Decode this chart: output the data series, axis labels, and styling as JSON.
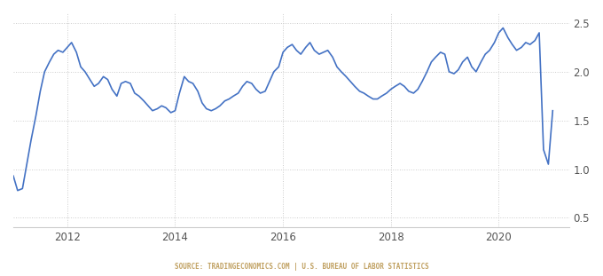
{
  "title": "",
  "source_text": "SOURCE: TRADINGECONOMICS.COM | U.S. BUREAU OF LABOR STATISTICS",
  "line_color": "#4472c4",
  "bg_color": "#ffffff",
  "grid_color": "#cccccc",
  "xlim_start": 2011.0,
  "xlim_end": 2021.3,
  "ylim_bottom": 0.4,
  "ylim_top": 2.6,
  "yticks": [
    0.5,
    1.0,
    1.5,
    2.0,
    2.5
  ],
  "xtick_labels": [
    "2012",
    "2014",
    "2016",
    "2018",
    "2020"
  ],
  "xtick_positions": [
    2012,
    2014,
    2016,
    2018,
    2020
  ],
  "source_color": "#c0a060",
  "xy_data": [
    [
      2011.0,
      0.93
    ],
    [
      2011.08,
      0.78
    ],
    [
      2011.17,
      0.8
    ],
    [
      2011.25,
      1.05
    ],
    [
      2011.33,
      1.3
    ],
    [
      2011.42,
      1.55
    ],
    [
      2011.5,
      1.8
    ],
    [
      2011.58,
      2.0
    ],
    [
      2011.67,
      2.1
    ],
    [
      2011.75,
      2.18
    ],
    [
      2011.83,
      2.22
    ],
    [
      2011.92,
      2.2
    ],
    [
      2012.0,
      2.25
    ],
    [
      2012.08,
      2.3
    ],
    [
      2012.17,
      2.2
    ],
    [
      2012.25,
      2.05
    ],
    [
      2012.33,
      2.0
    ],
    [
      2012.42,
      1.92
    ],
    [
      2012.5,
      1.85
    ],
    [
      2012.58,
      1.88
    ],
    [
      2012.67,
      1.95
    ],
    [
      2012.75,
      1.92
    ],
    [
      2012.83,
      1.82
    ],
    [
      2012.92,
      1.75
    ],
    [
      2013.0,
      1.88
    ],
    [
      2013.08,
      1.9
    ],
    [
      2013.17,
      1.88
    ],
    [
      2013.25,
      1.78
    ],
    [
      2013.33,
      1.75
    ],
    [
      2013.42,
      1.7
    ],
    [
      2013.5,
      1.65
    ],
    [
      2013.58,
      1.6
    ],
    [
      2013.67,
      1.62
    ],
    [
      2013.75,
      1.65
    ],
    [
      2013.83,
      1.63
    ],
    [
      2013.92,
      1.58
    ],
    [
      2014.0,
      1.6
    ],
    [
      2014.08,
      1.78
    ],
    [
      2014.17,
      1.95
    ],
    [
      2014.25,
      1.9
    ],
    [
      2014.33,
      1.88
    ],
    [
      2014.42,
      1.8
    ],
    [
      2014.5,
      1.68
    ],
    [
      2014.58,
      1.62
    ],
    [
      2014.67,
      1.6
    ],
    [
      2014.75,
      1.62
    ],
    [
      2014.83,
      1.65
    ],
    [
      2014.92,
      1.7
    ],
    [
      2015.0,
      1.72
    ],
    [
      2015.08,
      1.75
    ],
    [
      2015.17,
      1.78
    ],
    [
      2015.25,
      1.85
    ],
    [
      2015.33,
      1.9
    ],
    [
      2015.42,
      1.88
    ],
    [
      2015.5,
      1.82
    ],
    [
      2015.58,
      1.78
    ],
    [
      2015.67,
      1.8
    ],
    [
      2015.75,
      1.9
    ],
    [
      2015.83,
      2.0
    ],
    [
      2015.92,
      2.05
    ],
    [
      2016.0,
      2.2
    ],
    [
      2016.08,
      2.25
    ],
    [
      2016.17,
      2.28
    ],
    [
      2016.25,
      2.22
    ],
    [
      2016.33,
      2.18
    ],
    [
      2016.42,
      2.25
    ],
    [
      2016.5,
      2.3
    ],
    [
      2016.58,
      2.22
    ],
    [
      2016.67,
      2.18
    ],
    [
      2016.75,
      2.2
    ],
    [
      2016.83,
      2.22
    ],
    [
      2016.92,
      2.15
    ],
    [
      2017.0,
      2.05
    ],
    [
      2017.08,
      2.0
    ],
    [
      2017.17,
      1.95
    ],
    [
      2017.25,
      1.9
    ],
    [
      2017.33,
      1.85
    ],
    [
      2017.42,
      1.8
    ],
    [
      2017.5,
      1.78
    ],
    [
      2017.58,
      1.75
    ],
    [
      2017.67,
      1.72
    ],
    [
      2017.75,
      1.72
    ],
    [
      2017.83,
      1.75
    ],
    [
      2017.92,
      1.78
    ],
    [
      2018.0,
      1.82
    ],
    [
      2018.08,
      1.85
    ],
    [
      2018.17,
      1.88
    ],
    [
      2018.25,
      1.85
    ],
    [
      2018.33,
      1.8
    ],
    [
      2018.42,
      1.78
    ],
    [
      2018.5,
      1.82
    ],
    [
      2018.58,
      1.9
    ],
    [
      2018.67,
      2.0
    ],
    [
      2018.75,
      2.1
    ],
    [
      2018.83,
      2.15
    ],
    [
      2018.92,
      2.2
    ],
    [
      2019.0,
      2.18
    ],
    [
      2019.08,
      2.0
    ],
    [
      2019.17,
      1.98
    ],
    [
      2019.25,
      2.02
    ],
    [
      2019.33,
      2.1
    ],
    [
      2019.42,
      2.15
    ],
    [
      2019.5,
      2.05
    ],
    [
      2019.58,
      2.0
    ],
    [
      2019.67,
      2.1
    ],
    [
      2019.75,
      2.18
    ],
    [
      2019.83,
      2.22
    ],
    [
      2019.92,
      2.3
    ],
    [
      2020.0,
      2.4
    ],
    [
      2020.08,
      2.45
    ],
    [
      2020.17,
      2.35
    ],
    [
      2020.25,
      2.28
    ],
    [
      2020.33,
      2.22
    ],
    [
      2020.42,
      2.25
    ],
    [
      2020.5,
      2.3
    ],
    [
      2020.58,
      2.28
    ],
    [
      2020.67,
      2.32
    ],
    [
      2020.75,
      2.4
    ],
    [
      2020.83,
      1.2
    ],
    [
      2020.92,
      1.05
    ],
    [
      2021.0,
      1.6
    ]
  ]
}
